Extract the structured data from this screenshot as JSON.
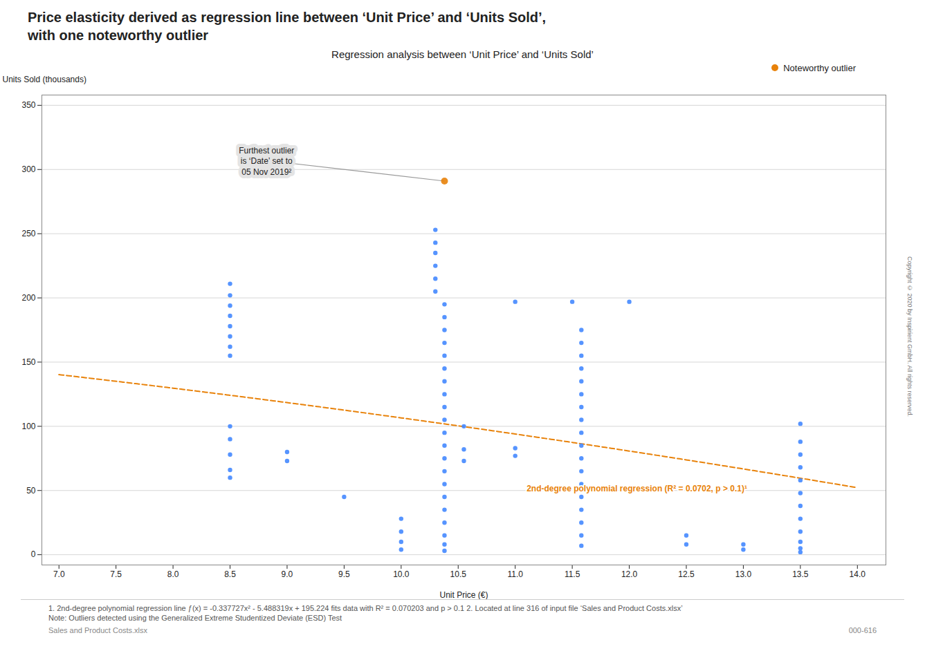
{
  "chart_data": {
    "type": "scatter",
    "title": "Price elasticity derived as regression line between ‘Unit Price’ and ‘Units Sold’,\nwith one noteworthy outlier",
    "subtitle": "Regression analysis between ‘Unit Price’ and ‘Units Sold’",
    "xlabel": "Unit Price (€)",
    "ylabel": "Units Sold (thousands)",
    "xlim": [
      6.85,
      14.25
    ],
    "ylim": [
      -8,
      358
    ],
    "xticks": [
      {
        "value": 7.0,
        "label": "7.0"
      },
      {
        "value": 7.5,
        "label": "7.5"
      },
      {
        "value": 8.0,
        "label": "8.0"
      },
      {
        "value": 8.5,
        "label": "8.5"
      },
      {
        "value": 9.0,
        "label": "9.0"
      },
      {
        "value": 9.5,
        "label": "9.5"
      },
      {
        "value": 10.0,
        "label": "10.0"
      },
      {
        "value": 10.5,
        "label": "10.5"
      },
      {
        "value": 11.0,
        "label": "11.0"
      },
      {
        "value": 11.5,
        "label": "11.5"
      },
      {
        "value": 12.0,
        "label": "12.0"
      },
      {
        "value": 12.5,
        "label": "12.5"
      },
      {
        "value": 13.0,
        "label": "13.0"
      },
      {
        "value": 13.5,
        "label": "13.5"
      },
      {
        "value": 14.0,
        "label": "14.0"
      }
    ],
    "yticks": [
      0,
      50,
      100,
      150,
      200,
      250,
      300,
      350
    ],
    "grid": "y",
    "legend": "upper right",
    "series": [
      {
        "type": "scatter",
        "marker": "circle",
        "color": "#4488ff",
        "x": [
          8.5,
          8.5,
          8.5,
          8.5,
          8.5,
          8.5,
          8.5,
          8.5,
          8.5,
          8.5,
          8.5,
          8.5,
          8.5,
          9.0,
          9.0,
          9.5,
          10.0,
          10.0,
          10.0,
          10.0,
          10.3,
          10.3,
          10.3,
          10.3,
          10.3,
          10.3,
          10.38,
          10.38,
          10.38,
          10.38,
          10.38,
          10.38,
          10.38,
          10.38,
          10.38,
          10.38,
          10.38,
          10.38,
          10.38,
          10.38,
          10.38,
          10.38,
          10.38,
          10.38,
          10.38,
          10.38,
          10.38,
          10.55,
          10.55,
          10.55,
          11.0,
          11.0,
          11.0,
          11.5,
          11.58,
          11.58,
          11.58,
          11.58,
          11.58,
          11.58,
          11.58,
          11.58,
          11.58,
          11.58,
          11.58,
          11.58,
          11.58,
          11.58,
          11.58,
          11.58,
          11.58,
          11.58,
          12.0,
          12.5,
          12.5,
          13.0,
          13.0,
          13.5,
          13.5,
          13.5,
          13.5,
          13.5,
          13.5,
          13.5,
          13.5,
          13.5,
          13.5,
          13.5,
          13.5
        ],
        "y": [
          211,
          202,
          194,
          186,
          178,
          170,
          162,
          155,
          100,
          90,
          78,
          66,
          60,
          80,
          73,
          45,
          28,
          18,
          10,
          4,
          253,
          243,
          235,
          225,
          215,
          205,
          195,
          185,
          175,
          165,
          155,
          145,
          135,
          125,
          115,
          105,
          95,
          85,
          75,
          65,
          55,
          45,
          35,
          25,
          15,
          8,
          3,
          100,
          82,
          73,
          197,
          83,
          77,
          197,
          175,
          165,
          155,
          145,
          135,
          125,
          115,
          105,
          95,
          85,
          75,
          65,
          55,
          45,
          35,
          25,
          15,
          7,
          197,
          15,
          8,
          8,
          4,
          102,
          88,
          78,
          68,
          58,
          48,
          38,
          28,
          18,
          10,
          5,
          2
        ]
      },
      {
        "type": "scatter",
        "marker": "circle",
        "name": "Noteworthy outlier",
        "color": "#e8820a",
        "x": [
          10.38
        ],
        "y": [
          291
        ]
      },
      {
        "type": "line",
        "line_style": "dashed",
        "color": "#e8820a",
        "poly_coeffs": [
          -0.337727,
          -5.488319,
          195.224
        ],
        "x_range": [
          7.0,
          14.0
        ]
      }
    ],
    "annotations": [
      {
        "text": "2nd-degree polynomial regression (R² = 0.0702, p > 0.1)¹",
        "x": 11.1,
        "y": 52,
        "color": "#e8820a"
      },
      {
        "text": "Furthest outlier\nis ‘Date’ set to\n05 Nov 2019²",
        "x": 8.82,
        "y": 307,
        "arrow_to": [
          10.38,
          291
        ]
      }
    ],
    "footnotes": [
      "1. 2nd-degree polynomial regression line ƒ(x) = -0.337727x² - 5.488319x + 195.224 fits data with R² = 0.070203 and p > 0.1   2. Located at line 316 of input file ‘Sales and Product Costs.xlsx’",
      "Note: Outliers detected using the Generalized Extreme Studentized Deviate (ESD) Test"
    ],
    "source": "Sales and Product Costs.xlsx",
    "page_id": "000-616",
    "copyright": "Copyright © 2020 by Inspirient GmbH. All rights reserved."
  }
}
